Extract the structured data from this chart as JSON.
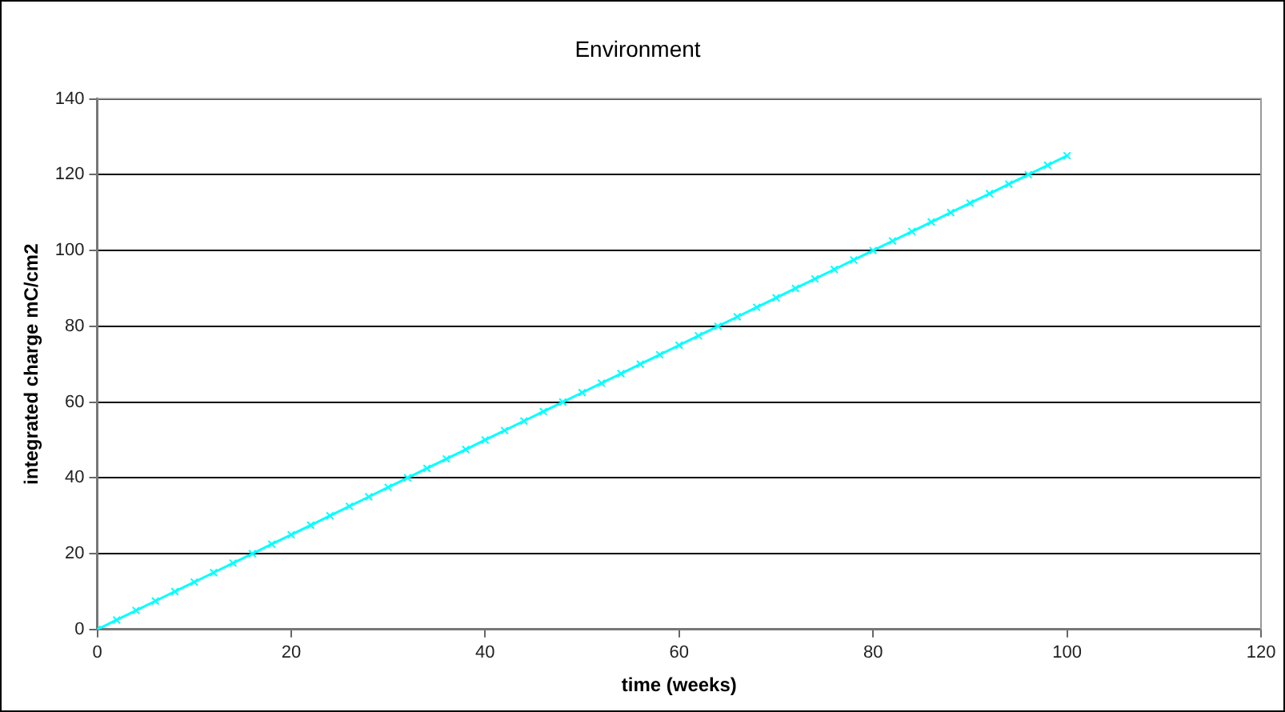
{
  "chart_data": {
    "type": "line",
    "title": "Environment",
    "xlabel": "time (weeks)",
    "ylabel": "integrated charge mC/cm2",
    "x": [
      0,
      2,
      4,
      6,
      8,
      10,
      12,
      14,
      16,
      18,
      20,
      22,
      24,
      26,
      28,
      30,
      32,
      34,
      36,
      38,
      40,
      42,
      44,
      46,
      48,
      50,
      52,
      54,
      56,
      58,
      60,
      62,
      64,
      66,
      68,
      70,
      72,
      74,
      76,
      78,
      80,
      82,
      84,
      86,
      88,
      90,
      92,
      94,
      96,
      98,
      100
    ],
    "series": [
      {
        "color": "#00ffff",
        "values": [
          0,
          2.5,
          5,
          7.5,
          10,
          12.5,
          15,
          17.5,
          20,
          22.5,
          25,
          27.5,
          30,
          32.5,
          35,
          37.5,
          40,
          42.5,
          45,
          47.5,
          50,
          52.5,
          55,
          57.5,
          60,
          62.5,
          65,
          67.5,
          70,
          72.5,
          75,
          77.5,
          80,
          82.5,
          85,
          87.5,
          90,
          92.5,
          95,
          97.5,
          100,
          102.5,
          105,
          107.5,
          110,
          112.5,
          115,
          117.5,
          120,
          122.5,
          125
        ]
      }
    ],
    "xlim": [
      0,
      120
    ],
    "xticks": [
      0,
      20,
      40,
      60,
      80,
      100,
      120
    ],
    "ylim": [
      0,
      140
    ],
    "yticks": [
      0,
      20,
      40,
      60,
      80,
      100,
      120,
      140
    ],
    "grid": "y",
    "legend": false,
    "marker": "cross",
    "line_style": "solid"
  }
}
